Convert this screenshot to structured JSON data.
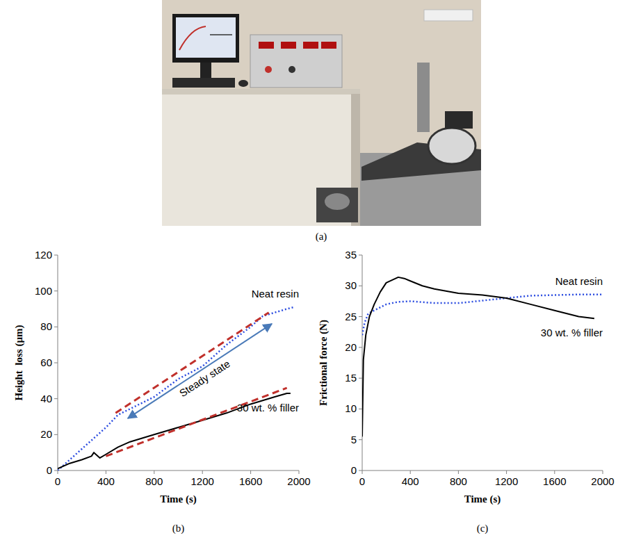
{
  "photo": {
    "caption": "(a)"
  },
  "chart_data": [
    {
      "type": "line",
      "caption": "(b)",
      "x_label": "Time (s)",
      "y_label": "Height  loss (µm)",
      "xlim": [
        0,
        2000
      ],
      "ylim": [
        0,
        120
      ],
      "xticks": [
        0,
        400,
        800,
        1200,
        1600,
        2000
      ],
      "yticks": [
        0,
        20,
        40,
        60,
        80,
        100,
        120
      ],
      "grid": false,
      "annotations": [
        "Steady state"
      ],
      "series": [
        {
          "name": "Neat resin",
          "color": "#2b4ce0",
          "line_style": "dotted",
          "x": [
            0,
            200,
            400,
            500,
            800,
            1000,
            1200,
            1400,
            1600,
            1700,
            1800,
            1900,
            1960
          ],
          "values": [
            0,
            12,
            24,
            31,
            41,
            51,
            58,
            70,
            80,
            86,
            88,
            90,
            91
          ]
        },
        {
          "name": "30 wt. % filler",
          "color": "#000000",
          "line_style": "solid",
          "x": [
            0,
            100,
            200,
            280,
            300,
            350,
            400,
            500,
            600,
            800,
            1000,
            1200,
            1400,
            1600,
            1800,
            1900,
            1930
          ],
          "values": [
            1,
            4,
            6,
            8,
            10,
            7,
            9,
            13,
            16,
            20,
            24,
            28,
            32,
            37,
            41,
            43,
            43
          ]
        },
        {
          "color": "#c0302b",
          "line_style": "dashed",
          "x": [
            480,
            1750
          ],
          "values": [
            32,
            88
          ]
        },
        {
          "color": "#c0302b",
          "line_style": "dashed",
          "x": [
            400,
            1900
          ],
          "values": [
            8,
            46
          ]
        }
      ]
    },
    {
      "type": "line",
      "caption": "(c)",
      "x_label": "Time (s)",
      "y_label": "Frictional force (N)",
      "xlim": [
        0,
        2000
      ],
      "ylim": [
        0,
        35
      ],
      "xticks": [
        0,
        400,
        800,
        1200,
        1600,
        2000
      ],
      "yticks": [
        0,
        5,
        10,
        15,
        20,
        25,
        30,
        35
      ],
      "grid": false,
      "series": [
        {
          "name": "Neat resin",
          "color": "#2b4ce0",
          "line_style": "dotted",
          "x": [
            0,
            20,
            50,
            100,
            200,
            300,
            400,
            600,
            800,
            1000,
            1200,
            1400,
            1600,
            1800,
            2000
          ],
          "values": [
            22,
            24,
            25.5,
            26,
            27,
            27.4,
            27.5,
            27.2,
            27.2,
            27.6,
            28,
            28.4,
            28.5,
            28.6,
            28.6
          ]
        },
        {
          "name": "30 wt. % filler",
          "color": "#000000",
          "line_style": "solid",
          "x": [
            0,
            10,
            30,
            60,
            100,
            150,
            200,
            300,
            350,
            400,
            500,
            600,
            800,
            1000,
            1200,
            1400,
            1600,
            1800,
            1930
          ],
          "values": [
            5.5,
            18,
            22,
            25,
            27,
            29,
            30.5,
            31.4,
            31.2,
            30.8,
            30,
            29.5,
            28.8,
            28.5,
            28,
            27,
            26,
            25,
            24.7
          ]
        }
      ]
    }
  ]
}
